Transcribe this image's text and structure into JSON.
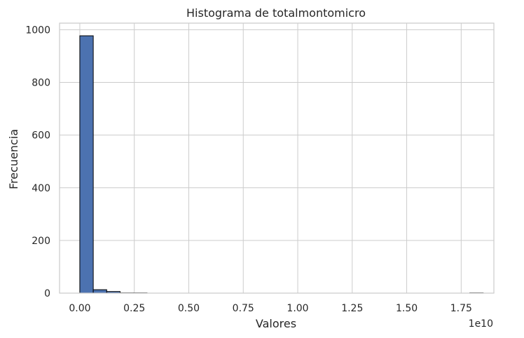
{
  "chart_data": {
    "type": "bar",
    "title": "Histograma de totalmontomicro",
    "xlabel": "Valores",
    "ylabel": "Frecuencia",
    "x_offset_label": "1e10",
    "x_scale": 10000000000,
    "xlim": [
      -0.093,
      1.9
    ],
    "ylim": [
      0,
      1025
    ],
    "xticks": [
      0.0,
      0.25,
      0.5,
      0.75,
      1.0,
      1.25,
      1.5,
      1.75
    ],
    "xtick_labels": [
      "0.00",
      "0.25",
      "0.50",
      "0.75",
      "1.00",
      "1.25",
      "1.50",
      "1.75"
    ],
    "yticks": [
      0,
      200,
      400,
      600,
      800,
      1000
    ],
    "ytick_labels": [
      "0",
      "200",
      "400",
      "600",
      "800",
      "1000"
    ],
    "bin_start": 0.0,
    "bin_width": 0.0617,
    "counts": [
      977,
      13,
      6,
      1,
      1,
      0,
      0,
      0,
      0,
      0,
      0,
      0,
      0,
      0,
      0,
      0,
      0,
      0,
      0,
      0,
      0,
      0,
      0,
      0,
      0,
      0,
      0,
      0,
      0,
      1
    ],
    "grid": true,
    "bar_color": "#4c72b0",
    "edge_color": "#000000",
    "grid_color": "#cccccc"
  }
}
